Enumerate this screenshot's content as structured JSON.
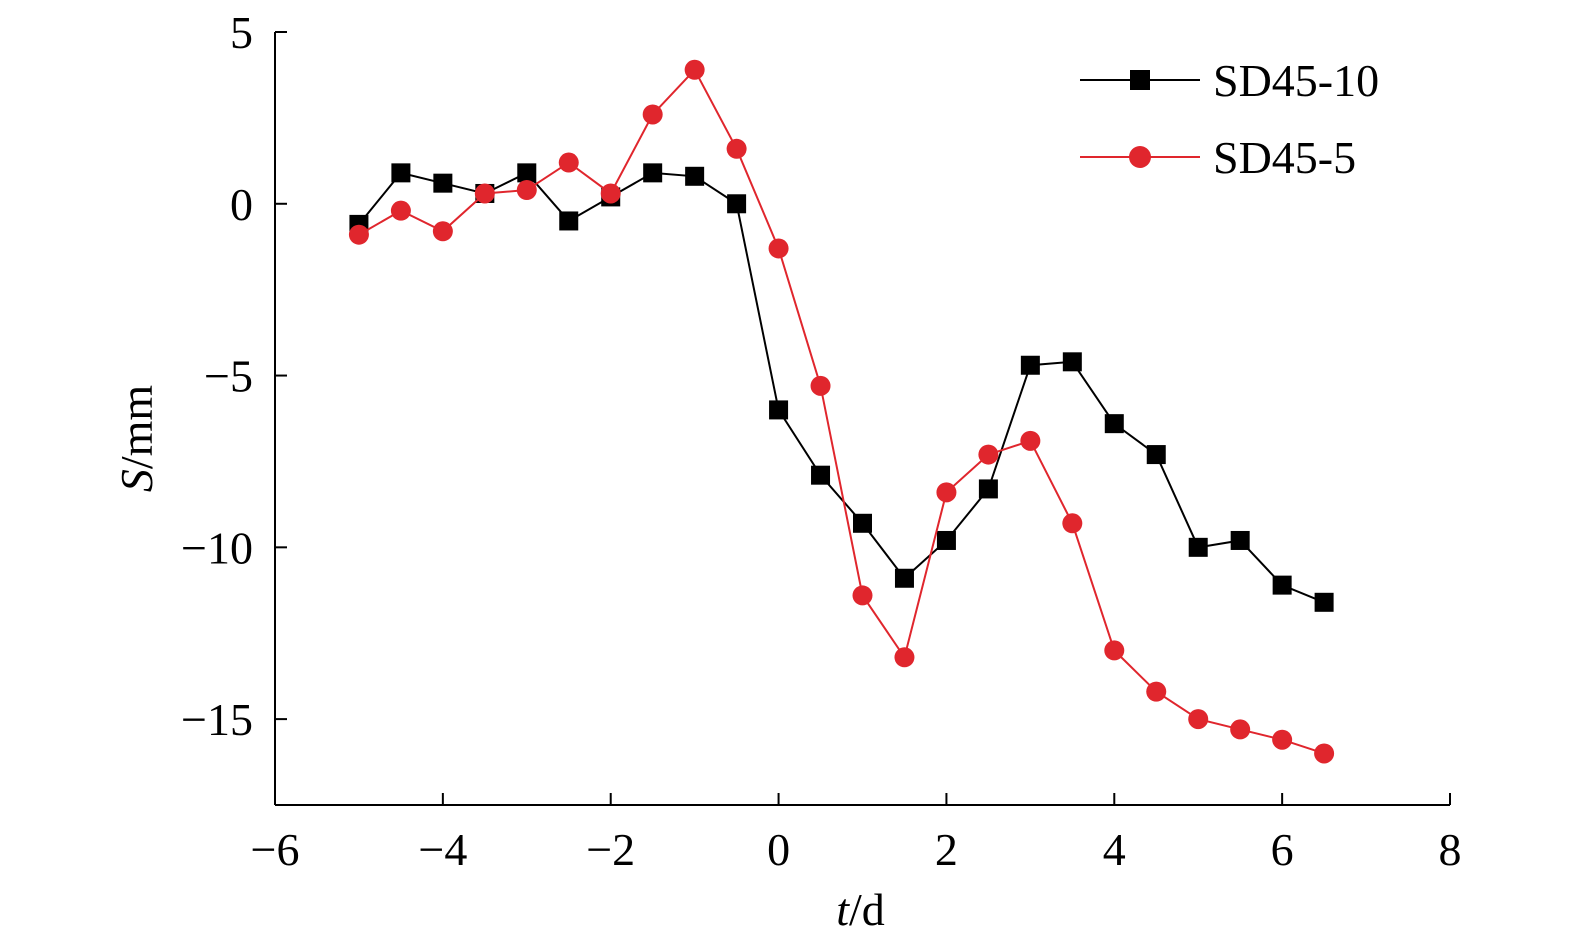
{
  "chart_data": {
    "type": "line",
    "title": "",
    "xlabel_italic": "t",
    "xlabel_unit": "/d",
    "ylabel_italic": "S",
    "ylabel_unit": "/mm",
    "xlim": [
      -6,
      8
    ],
    "ylim": [
      -17.5,
      5
    ],
    "x_ticks": [
      -6,
      -4,
      -2,
      0,
      2,
      4,
      6,
      8
    ],
    "x_tick_labels": [
      "−6",
      "−4",
      "−2",
      "0",
      "2",
      "4",
      "6",
      "8"
    ],
    "y_ticks": [
      5,
      0,
      -5,
      -10,
      -15
    ],
    "y_tick_labels": [
      "5",
      "0",
      "−5",
      "−10",
      "−15"
    ],
    "grid": false,
    "legend_position": "top-right",
    "x": [
      -5,
      -4.5,
      -4,
      -3.5,
      -3,
      -2.5,
      -2,
      -1.5,
      -1,
      -0.5,
      0,
      0.5,
      1,
      1.5,
      2,
      2.5,
      3,
      3.5,
      4,
      4.5,
      5,
      5.5,
      6,
      6.5
    ],
    "series": [
      {
        "name": "SD45-10",
        "color": "#000000",
        "marker": "square",
        "values": [
          -0.6,
          0.9,
          0.6,
          0.3,
          0.9,
          -0.5,
          0.2,
          0.9,
          0.8,
          0.0,
          -6.0,
          -7.9,
          -9.3,
          -10.9,
          -9.8,
          -8.3,
          -4.7,
          -4.6,
          -6.4,
          -7.3,
          -10.0,
          -9.8,
          -11.1,
          -11.6
        ]
      },
      {
        "name": "SD45-5",
        "color": "#e0262d",
        "marker": "circle",
        "values": [
          -0.9,
          -0.2,
          -0.8,
          0.3,
          0.4,
          1.2,
          0.3,
          2.6,
          3.9,
          1.6,
          -1.3,
          -5.3,
          -11.4,
          -13.2,
          -8.4,
          -7.3,
          -6.9,
          -9.3,
          -13.0,
          -14.2,
          -15.0,
          -15.3,
          -15.6,
          -16.0
        ]
      }
    ]
  }
}
